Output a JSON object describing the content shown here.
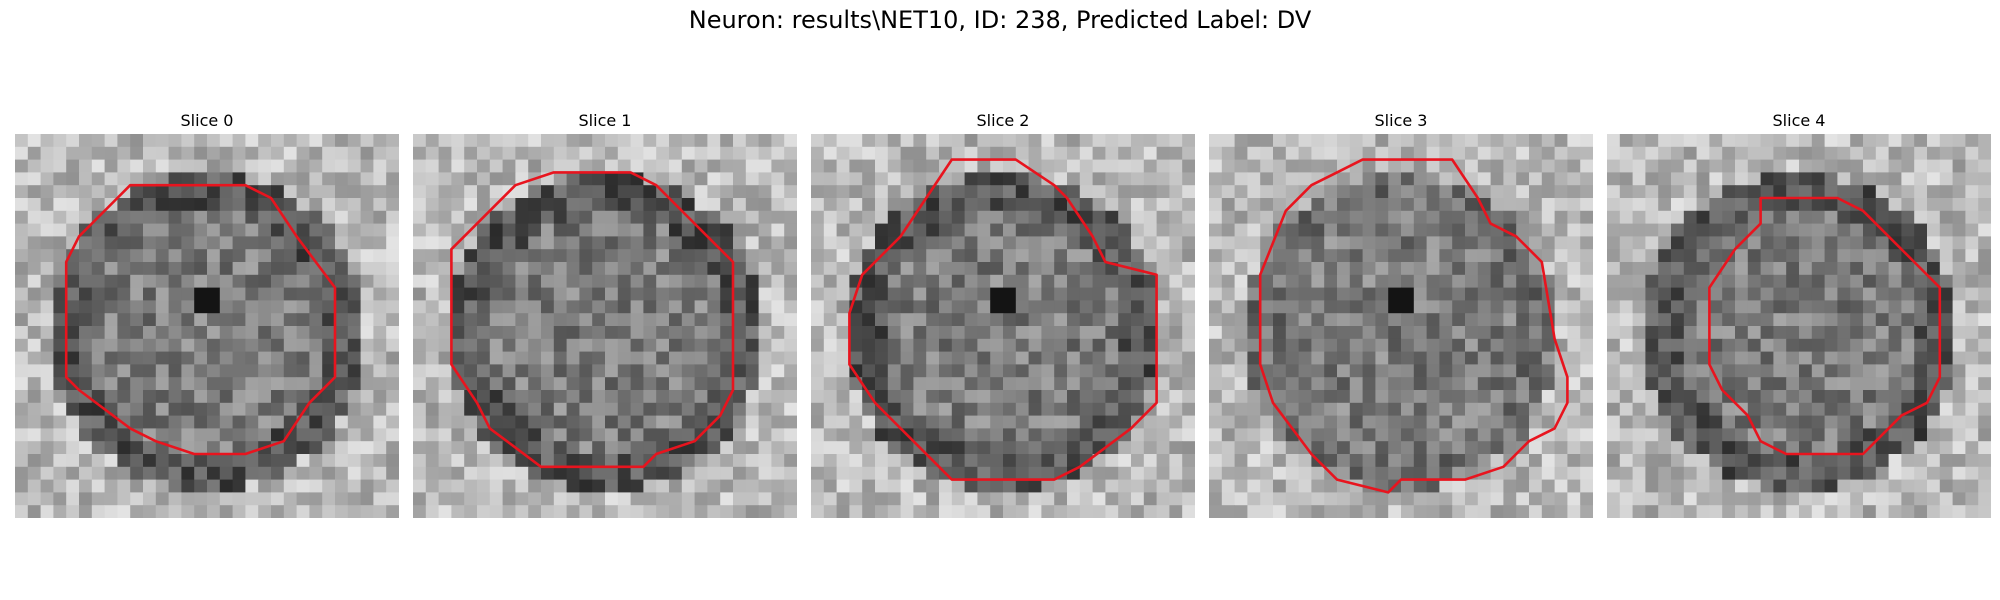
{
  "figure": {
    "title": "Neuron: results\\NET10, ID: 238, Predicted Label: DV",
    "contour_color": "#e8141e",
    "grid_size": 30
  },
  "panels": [
    {
      "label": "Slice 0",
      "image": {
        "dark_ring": true,
        "speck": true
      },
      "contour": [
        [
          12,
          4
        ],
        [
          18,
          4
        ],
        [
          20,
          5
        ],
        [
          22,
          8
        ],
        [
          25,
          12
        ],
        [
          25,
          19
        ],
        [
          23,
          21
        ],
        [
          21,
          24
        ],
        [
          18,
          25
        ],
        [
          14,
          25
        ],
        [
          11,
          24
        ],
        [
          9,
          23
        ],
        [
          5,
          20
        ],
        [
          4,
          19
        ],
        [
          4,
          10
        ],
        [
          5,
          8
        ],
        [
          8,
          5
        ],
        [
          9,
          4
        ]
      ]
    },
    {
      "label": "Slice 1",
      "image": {
        "dark_ring": true,
        "speck": false
      },
      "contour": [
        [
          11,
          3
        ],
        [
          17,
          3
        ],
        [
          19,
          4
        ],
        [
          20,
          5
        ],
        [
          23,
          8
        ],
        [
          25,
          10
        ],
        [
          25,
          20
        ],
        [
          24,
          22
        ],
        [
          22,
          24
        ],
        [
          19,
          25
        ],
        [
          18,
          26
        ],
        [
          10,
          26
        ],
        [
          6,
          23
        ],
        [
          5,
          21
        ],
        [
          3,
          18
        ],
        [
          3,
          13
        ],
        [
          3,
          9
        ],
        [
          4,
          8
        ],
        [
          6,
          6
        ],
        [
          8,
          4
        ]
      ]
    },
    {
      "label": "Slice 2",
      "image": {
        "dark_ring": true,
        "speck": true
      },
      "contour": [
        [
          11,
          2
        ],
        [
          16,
          2
        ],
        [
          19,
          4
        ],
        [
          20,
          5
        ],
        [
          22,
          8
        ],
        [
          23,
          10
        ],
        [
          27,
          11
        ],
        [
          27,
          21
        ],
        [
          25,
          23
        ],
        [
          21,
          26
        ],
        [
          19,
          27
        ],
        [
          11,
          27
        ],
        [
          8,
          24
        ],
        [
          5,
          21
        ],
        [
          3,
          18
        ],
        [
          3,
          15
        ],
        [
          3,
          14
        ],
        [
          4,
          11
        ],
        [
          7,
          8
        ],
        [
          9,
          5
        ]
      ]
    },
    {
      "label": "Slice 3",
      "image": {
        "dark_ring": false,
        "speck": true
      },
      "contour": [
        [
          12,
          2
        ],
        [
          19,
          2
        ],
        [
          21,
          5
        ],
        [
          22,
          7
        ],
        [
          24,
          8
        ],
        [
          26,
          10
        ],
        [
          27,
          16
        ],
        [
          28,
          19
        ],
        [
          28,
          21
        ],
        [
          27,
          23
        ],
        [
          25,
          24
        ],
        [
          23,
          26
        ],
        [
          20,
          27
        ],
        [
          15,
          27
        ],
        [
          14,
          28
        ],
        [
          10,
          27
        ],
        [
          8,
          25
        ],
        [
          5,
          21
        ],
        [
          4,
          18
        ],
        [
          4,
          11
        ],
        [
          6,
          6
        ],
        [
          8,
          4
        ],
        [
          10,
          3
        ]
      ]
    },
    {
      "label": "Slice 4",
      "image": {
        "dark_ring": true,
        "speck": false
      },
      "contour": [
        [
          12,
          5
        ],
        [
          18,
          5
        ],
        [
          20,
          6
        ],
        [
          22,
          8
        ],
        [
          24,
          10
        ],
        [
          26,
          12
        ],
        [
          26,
          19
        ],
        [
          25,
          21
        ],
        [
          23,
          22
        ],
        [
          21,
          24
        ],
        [
          20,
          25
        ],
        [
          14,
          25
        ],
        [
          12,
          24
        ],
        [
          11,
          22
        ],
        [
          9,
          20
        ],
        [
          8,
          18
        ],
        [
          8,
          12
        ],
        [
          10,
          9
        ],
        [
          12,
          7
        ]
      ]
    }
  ]
}
